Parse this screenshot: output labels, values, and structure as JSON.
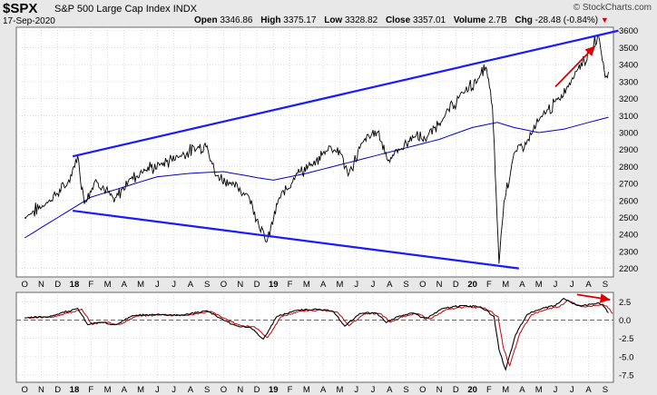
{
  "header": {
    "symbol": "$SPX",
    "name": "S&P 500 Large Cap Index",
    "exchange": "INDX",
    "date": "17-Sep-2020",
    "brand": "© StockCharts.com",
    "open_label": "Open",
    "open": "3346.86",
    "high_label": "High",
    "high": "3375.17",
    "low_label": "Low",
    "low": "3328.82",
    "close_label": "Close",
    "close": "3357.01",
    "volume_label": "Volume",
    "volume": "2.7B",
    "chg_label": "Chg",
    "chg": "-28.48 (-0.84%)"
  },
  "colors": {
    "price": "#000000",
    "ma": "#0000cc",
    "trendline": "#1a1aff",
    "annotation": "#e00000",
    "indicator_signal": "#cc0000",
    "panel_bg": "#ffffff",
    "grid": "#c8c8c8"
  },
  "chart_data": [
    {
      "type": "line",
      "panel": "price",
      "ylim": [
        2150,
        3620
      ],
      "yticks": [
        2200,
        2300,
        2400,
        2500,
        2600,
        2700,
        2800,
        2900,
        3000,
        3100,
        3200,
        3300,
        3400,
        3500,
        3600
      ],
      "x_labels": [
        "O",
        "N",
        "D",
        "18",
        "F",
        "M",
        "A",
        "M",
        "J",
        "J",
        "A",
        "S",
        "O",
        "N",
        "D",
        "19",
        "F",
        "M",
        "A",
        "M",
        "J",
        "J",
        "A",
        "S",
        "O",
        "N",
        "D",
        "20",
        "F",
        "M",
        "A",
        "M",
        "J",
        "J",
        "A",
        "S"
      ],
      "price_anchors": [
        [
          0,
          2500
        ],
        [
          1.5,
          2600
        ],
        [
          2.6,
          2700
        ],
        [
          3.2,
          2860
        ],
        [
          3.6,
          2590
        ],
        [
          4.3,
          2720
        ],
        [
          5.4,
          2600
        ],
        [
          6.3,
          2720
        ],
        [
          7.2,
          2780
        ],
        [
          8.2,
          2810
        ],
        [
          9.2,
          2860
        ],
        [
          10.4,
          2910
        ],
        [
          11,
          2930
        ],
        [
          11.5,
          2750
        ],
        [
          12.5,
          2700
        ],
        [
          13.5,
          2630
        ],
        [
          14.6,
          2350
        ],
        [
          15.3,
          2600
        ],
        [
          16.4,
          2760
        ],
        [
          17.4,
          2810
        ],
        [
          18.4,
          2920
        ],
        [
          19.1,
          2880
        ],
        [
          19.5,
          2740
        ],
        [
          20.4,
          2950
        ],
        [
          21.3,
          3010
        ],
        [
          21.9,
          2840
        ],
        [
          22.6,
          2900
        ],
        [
          23.5,
          2980
        ],
        [
          24.2,
          2960
        ],
        [
          25.3,
          3100
        ],
        [
          26.4,
          3230
        ],
        [
          27.4,
          3320
        ],
        [
          27.8,
          3390
        ],
        [
          28.2,
          3160
        ],
        [
          28.6,
          2240
        ],
        [
          28.9,
          2600
        ],
        [
          29.5,
          2870
        ],
        [
          30.3,
          2950
        ],
        [
          31.2,
          3100
        ],
        [
          32.3,
          3200
        ],
        [
          33.2,
          3360
        ],
        [
          34.2,
          3490
        ],
        [
          34.6,
          3580
        ],
        [
          35,
          3330
        ],
        [
          35.2,
          3357
        ]
      ],
      "ma200_anchors": [
        [
          0,
          2380
        ],
        [
          4,
          2620
        ],
        [
          6,
          2680
        ],
        [
          8,
          2740
        ],
        [
          10,
          2760
        ],
        [
          12,
          2770
        ],
        [
          14,
          2735
        ],
        [
          15,
          2720
        ],
        [
          17,
          2760
        ],
        [
          19,
          2810
        ],
        [
          21,
          2860
        ],
        [
          23,
          2910
        ],
        [
          25,
          2960
        ],
        [
          27,
          3030
        ],
        [
          28.5,
          3060
        ],
        [
          29.5,
          3030
        ],
        [
          31,
          3000
        ],
        [
          32.5,
          3020
        ],
        [
          34,
          3060
        ],
        [
          35.2,
          3090
        ]
      ],
      "upper_trendline": [
        [
          2.9,
          2860
        ],
        [
          35.8,
          3600
        ]
      ],
      "lower_trendline": [
        [
          2.9,
          2540
        ],
        [
          29.8,
          2200
        ]
      ],
      "arrows": [
        [
          32.0,
          3270,
          34.4,
          3510
        ]
      ]
    },
    {
      "type": "line",
      "panel": "indicator",
      "ylim": [
        -8.5,
        3.8
      ],
      "yticks": [
        2.5,
        0.0,
        -2.5,
        -5.0,
        -7.5
      ],
      "ytick_labels": [
        "2.5",
        "0.0",
        "-2.5",
        "-5.0",
        "-7.5"
      ],
      "reference_line": 0,
      "indicator_anchors": [
        [
          0,
          0.3
        ],
        [
          1.5,
          0.5
        ],
        [
          3.2,
          1.6
        ],
        [
          3.8,
          -0.6
        ],
        [
          4.5,
          -0.3
        ],
        [
          5.5,
          -0.6
        ],
        [
          6.5,
          0.6
        ],
        [
          8,
          0.8
        ],
        [
          9.5,
          0.7
        ],
        [
          11,
          1.3
        ],
        [
          12,
          0
        ],
        [
          12.8,
          -0.8
        ],
        [
          13.6,
          -1.0
        ],
        [
          14.4,
          -2.6
        ],
        [
          15.2,
          0.5
        ],
        [
          16.3,
          1.3
        ],
        [
          17.5,
          1.5
        ],
        [
          18.6,
          1.2
        ],
        [
          19.3,
          -0.8
        ],
        [
          20.2,
          0.9
        ],
        [
          21.2,
          1.0
        ],
        [
          21.8,
          -0.3
        ],
        [
          22.6,
          0.6
        ],
        [
          23.4,
          1.0
        ],
        [
          24.2,
          0.2
        ],
        [
          25.2,
          1.6
        ],
        [
          26.4,
          2.0
        ],
        [
          27.5,
          1.8
        ],
        [
          28.3,
          0.5
        ],
        [
          28.6,
          -4
        ],
        [
          29.0,
          -6.8
        ],
        [
          29.6,
          -2
        ],
        [
          30.3,
          0.8
        ],
        [
          31.2,
          1.6
        ],
        [
          32.0,
          2.0
        ],
        [
          32.5,
          3.0
        ],
        [
          33.3,
          2.0
        ],
        [
          34.2,
          2.2
        ],
        [
          34.6,
          2.4
        ],
        [
          35.0,
          1.7
        ],
        [
          35.2,
          1.0
        ]
      ],
      "arrows": [
        [
          33.3,
          3.5,
          35.3,
          2.8
        ]
      ]
    }
  ]
}
